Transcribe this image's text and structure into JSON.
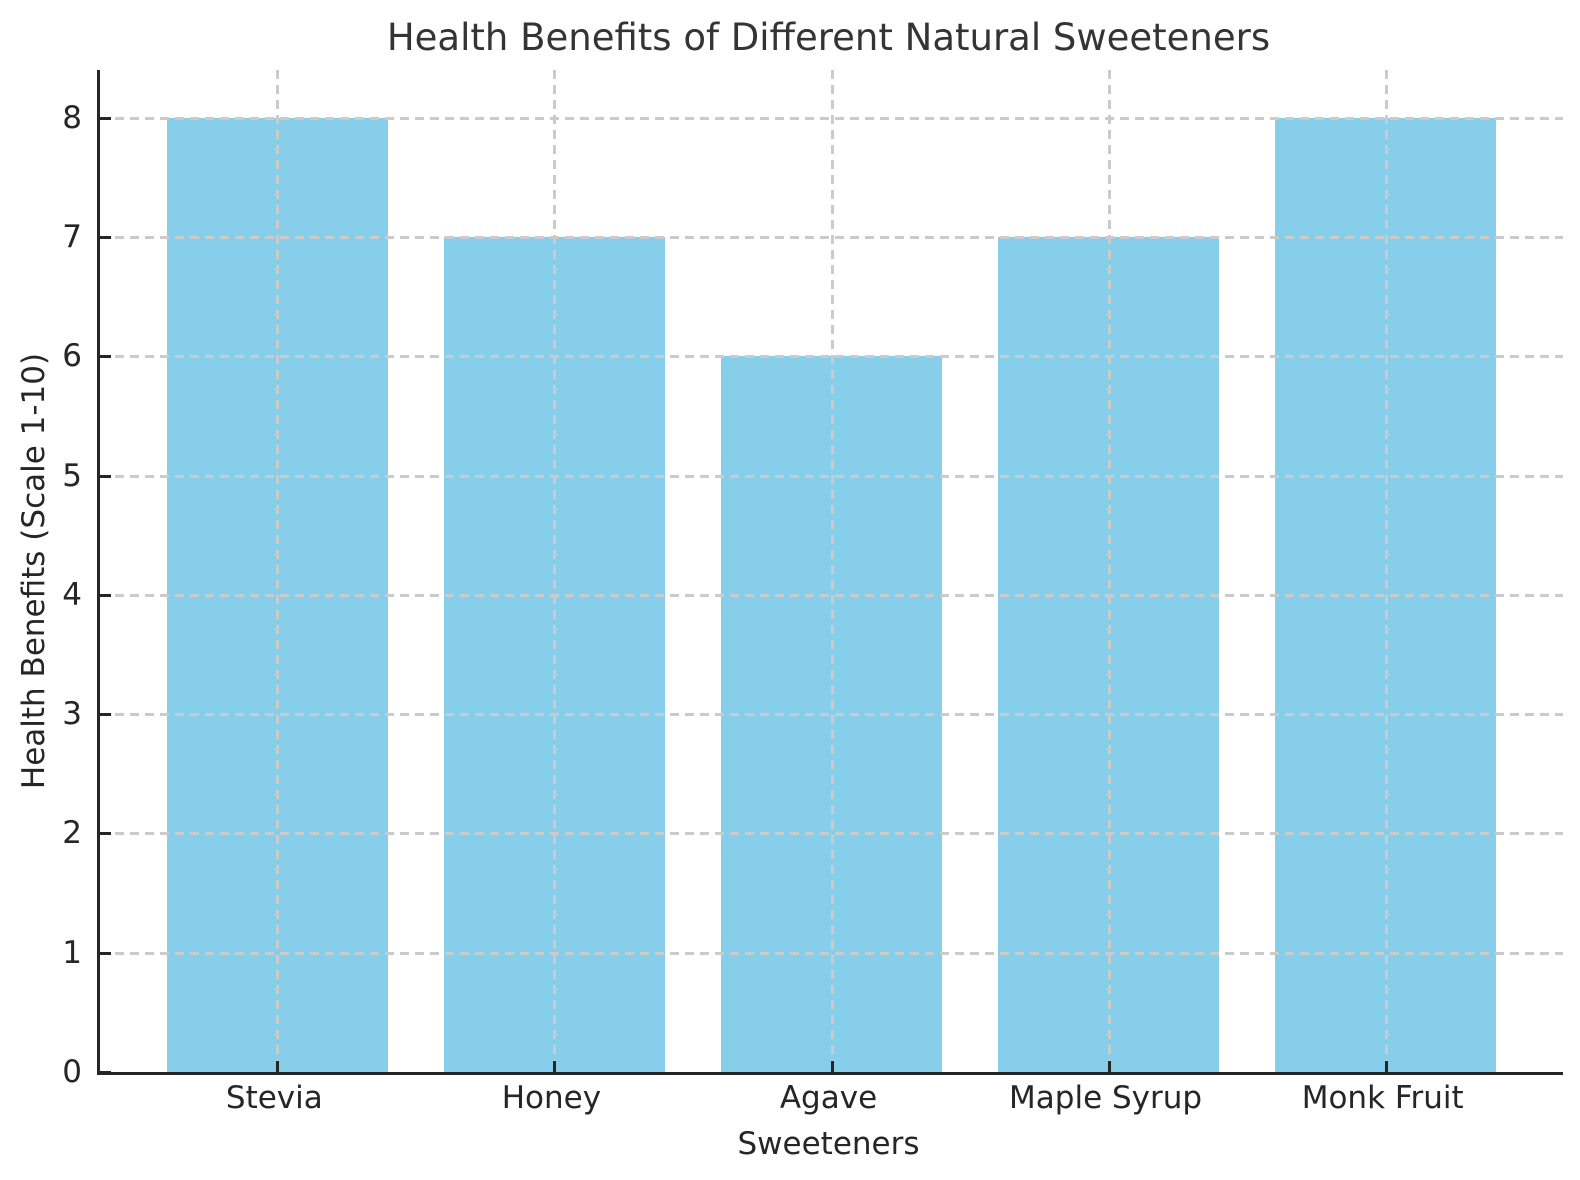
{
  "chart_data": {
    "type": "bar",
    "title": "Health Benefits of Different Natural Sweeteners",
    "xlabel": "Sweeteners",
    "ylabel": "Health Benefits (Scale 1-10)",
    "categories": [
      "Stevia",
      "Honey",
      "Agave",
      "Maple Syrup",
      "Monk Fruit"
    ],
    "values": [
      8,
      7,
      6,
      7,
      8
    ],
    "yticks": [
      0,
      1,
      2,
      3,
      4,
      5,
      6,
      7,
      8
    ],
    "ylim": [
      0,
      8.4
    ],
    "xlim": [
      -0.64,
      4.64
    ],
    "bar_width_fraction": 0.8,
    "bar_color": "#87CEEB",
    "grid": {
      "visible": true,
      "style": "dashed",
      "color": "#cbcbcb",
      "axes": "both"
    },
    "axis_color": "#262626",
    "text_color": "#262626",
    "legend": "none",
    "background": "#ffffff"
  }
}
